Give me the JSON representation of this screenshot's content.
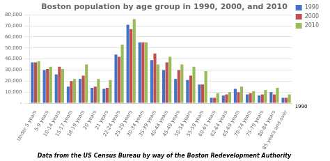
{
  "chart_data": {
    "type": "bar",
    "title": "Boston population by age group in 1990, 2000, and 2010",
    "subtitle": "Data from the US Census Bureau by way of the Boston Redevelopment Authority",
    "annotation": "1990",
    "categories": [
      "Under 5 years",
      "5-9 years",
      "10-14 years",
      "15-17 years",
      "18-19 years",
      "20 years",
      "21 years",
      "22-24 years",
      "25-29 years",
      "30-34 years",
      "35-39 years",
      "40-44 years",
      "45-49 years",
      "50-54 years",
      "55-59 years",
      "60-61 years",
      "62-64 years",
      "65-69 years",
      "70-74 years",
      "75-79 years",
      "80-84 years",
      "85 years and over"
    ],
    "series": [
      {
        "name": "1990",
        "color": "#4472C4",
        "values": [
          37000,
          30000,
          26000,
          15000,
          22000,
          14000,
          13000,
          44000,
          71000,
          55000,
          39000,
          30000,
          22000,
          21000,
          17000,
          5000,
          7000,
          13000,
          8000,
          7000,
          10000,
          5000
        ]
      },
      {
        "name": "2000",
        "color": "#C0504D",
        "values": [
          37000,
          31000,
          33000,
          20000,
          25000,
          15000,
          14000,
          42000,
          67000,
          55000,
          45000,
          37000,
          30000,
          25000,
          17000,
          5000,
          8000,
          10000,
          9000,
          8000,
          8000,
          5000
        ]
      },
      {
        "name": "2010",
        "color": "#9BBB59",
        "values": [
          38000,
          33000,
          31000,
          22000,
          35000,
          22000,
          21000,
          53000,
          76000,
          55000,
          35000,
          42000,
          35000,
          33000,
          29000,
          9000,
          10000,
          15000,
          11000,
          12000,
          14000,
          8000
        ]
      }
    ],
    "ylim": [
      0,
      80000
    ],
    "yticks": [
      {
        "value": 0,
        "label": "-"
      },
      {
        "value": 10000,
        "label": "10,000"
      },
      {
        "value": 20000,
        "label": "20,000"
      },
      {
        "value": 30000,
        "label": "30,000"
      },
      {
        "value": 40000,
        "label": "40,000"
      },
      {
        "value": 50000,
        "label": "50,000"
      },
      {
        "value": 60000,
        "label": "60,000"
      },
      {
        "value": 70000,
        "label": "70,000"
      },
      {
        "value": 80000,
        "label": "80,000"
      }
    ],
    "grid": "y",
    "legend": "right"
  }
}
